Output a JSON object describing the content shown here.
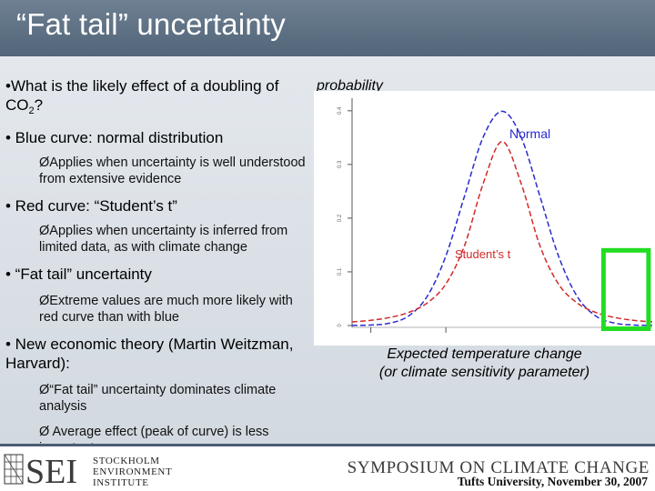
{
  "slide": {
    "title": "“Fat tail” uncertainty"
  },
  "bullets": {
    "q1_line1": "•What is the likely effect of a doubling of",
    "q1_co": "CO",
    "q1_sub": "2",
    "q1_q": "?",
    "blue": "• Blue curve: normal distribution",
    "blue_sub": "ØApplies when uncertainty is well understood from extensive evidence",
    "red": "• Red curve: “Student’s t”",
    "red_sub": "ØApplies when uncertainty is inferred from limited data, as with climate change",
    "fat": "• “Fat tail” uncertainty",
    "fat_sub": "ØExtreme values are much more likely with red curve than with blue",
    "econ": "• New economic theory (Martin Weitzman, Harvard):",
    "econ_sub1": "Ø“Fat tail” uncertainty dominates climate analysis",
    "econ_sub2": "Ø Average effect (peak of curve) is less important"
  },
  "chart_data": {
    "type": "line",
    "title": "",
    "ylabel": "probability",
    "xlabel_line1": "Expected temperature change",
    "xlabel_line2": "(or climate sensitivity parameter)",
    "xlim": [
      -4,
      4
    ],
    "ylim": [
      0,
      0.42
    ],
    "x": [
      -4.0,
      -3.5,
      -3.0,
      -2.5,
      -2.0,
      -1.5,
      -1.0,
      -0.5,
      0.0,
      0.5,
      1.0,
      1.5,
      2.0,
      2.5,
      3.0,
      3.5,
      4.0
    ],
    "series": [
      {
        "name": "Normal",
        "color": "#2a2ad0",
        "dash": "dashed",
        "values": [
          0.0001,
          0.0009,
          0.0044,
          0.0175,
          0.054,
          0.1295,
          0.242,
          0.352,
          0.399,
          0.352,
          0.242,
          0.1295,
          0.054,
          0.0175,
          0.0044,
          0.0009,
          0.0001
        ]
      },
      {
        "name": "Student’s t",
        "color": "#d02a2a",
        "dash": "dashed",
        "values": [
          0.0067,
          0.0097,
          0.0149,
          0.0242,
          0.0419,
          0.0774,
          0.1496,
          0.2658,
          0.3426,
          0.2658,
          0.1496,
          0.0774,
          0.0419,
          0.0242,
          0.0149,
          0.0097,
          0.0067
        ]
      }
    ],
    "annotations": {
      "normal_label": "Normal",
      "student_label": "Student’s t"
    },
    "highlight": {
      "x_range": [
        2.7,
        3.9
      ],
      "color": "#22dd22"
    },
    "ytick_labels": [
      "0.4",
      "0.3",
      "0.2",
      "0.1",
      "0"
    ]
  },
  "footer": {
    "logo_text": "SEI",
    "inst_line1": "STOCKHOLM",
    "inst_line2": "ENVIRONMENT",
    "inst_line3": "INSTITUTE",
    "symposium": "SYMPOSIUM ON CLIMATE CHANGE",
    "symposium_sub": "Tufts University, November 30, 2007"
  },
  "colors": {
    "header": "#5d6f82",
    "normal": "#2a2ad0",
    "student": "#d02a2a",
    "highlight": "#22dd22"
  }
}
